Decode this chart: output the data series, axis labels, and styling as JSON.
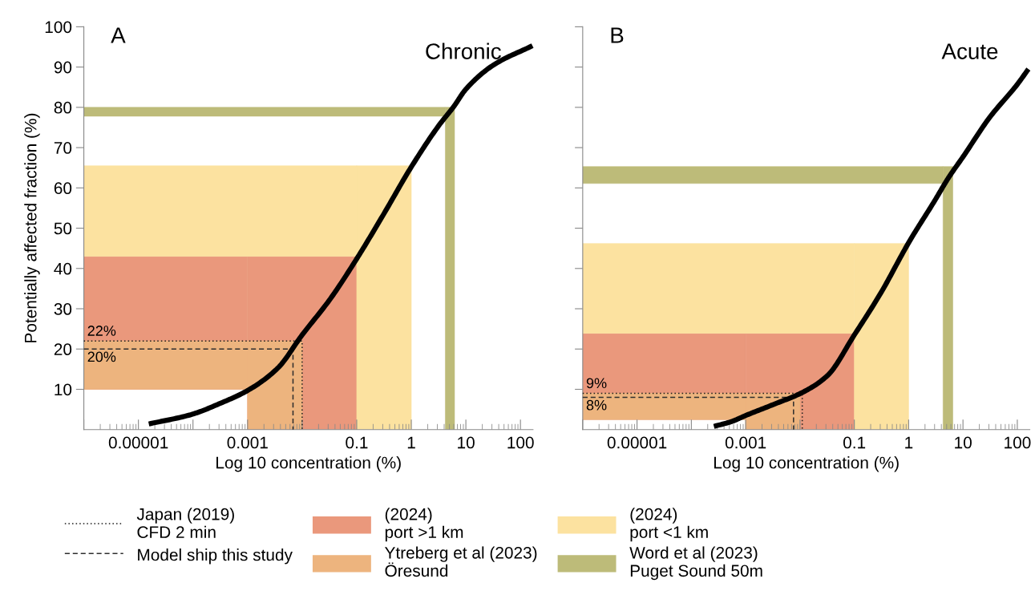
{
  "chart_data": [
    {
      "type": "line",
      "title": "A",
      "xlabel": "Log 10 concentration (%)",
      "ylabel": "Potentially affected fraction (%)",
      "log": "x",
      "xlim": [
        1e-06,
        170
      ],
      "ylim": [
        0,
        100
      ],
      "xticks": [
        {
          "value": 1e-06,
          "label": null
        },
        {
          "value": 1e-05,
          "label": "0.00001"
        },
        {
          "value": 0.0001,
          "label": null
        },
        {
          "value": 0.001,
          "label": "0.001"
        },
        {
          "value": 0.01,
          "label": null
        },
        {
          "value": 0.1,
          "label": "0.1"
        },
        {
          "value": 1,
          "label": "1"
        },
        {
          "value": 10,
          "label": "10"
        },
        {
          "value": 100,
          "label": "100"
        }
      ],
      "yticks": [
        10,
        20,
        30,
        40,
        50,
        60,
        70,
        80,
        90,
        100
      ],
      "legend": "bottom",
      "annotations": [
        "Chronic",
        {
          "text": "22%",
          "y": 22
        },
        {
          "text": "20%",
          "y": 20
        }
      ],
      "series": [
        {
          "name": "Japan (2019)\nCFD 2 min",
          "line_style": "dotted",
          "color": "#1c1c1c",
          "x": [
            1e-06,
            0.01,
            0.01
          ],
          "values": [
            22,
            22,
            0
          ]
        },
        {
          "name": "Model ship this study",
          "line_style": "dashed",
          "color": "#2e2e2e",
          "x": [
            1e-06,
            0.0068,
            0.0068
          ],
          "values": [
            20,
            20,
            0
          ]
        },
        {
          "type": "histogram",
          "name": "(2024)\nport >1 km",
          "color": "#ea987c",
          "bins": [
            1e-06,
            0.001,
            0.1
          ],
          "values": [
            33,
            43
          ],
          "base": [
            10,
            0
          ]
        },
        {
          "type": "histogram",
          "name": "Ytreberg et al (2023)\nÖresund",
          "color": "#edb47e",
          "bins": [
            1e-06,
            0.001,
            0.01
          ],
          "values": [
            12,
            22
          ],
          "base": [
            10,
            0
          ]
        },
        {
          "type": "histogram",
          "name": "(2024)\nport <1 km",
          "color": "#fce2a0",
          "bins": [
            1e-06,
            0.1,
            1
          ],
          "values": [
            22.5,
            65.5
          ],
          "base": [
            43,
            0
          ]
        },
        {
          "type": "histogram",
          "name": "Word et al (2023)\nPuget Sound 50m",
          "color": "#bdbb79",
          "bins": [
            1e-06,
            4.2,
            6.2
          ],
          "values": [
            2.2,
            80
          ],
          "base": [
            77.8,
            0
          ]
        },
        {
          "line_style": "solid",
          "color": "#000000",
          "x": [
            1.55e-05,
            9.1e-05,
            0.00034,
            0.001,
            0.0036,
            0.01,
            0.033,
            0.1,
            0.3,
            1,
            3.2,
            6,
            10,
            32,
            166
          ],
          "values": [
            1.4,
            3.7,
            6.7,
            9.7,
            15.3,
            23.5,
            32.5,
            42.4,
            53.1,
            65.2,
            75.5,
            80.2,
            84.5,
            90.5,
            95.3
          ]
        }
      ]
    },
    {
      "type": "line",
      "title": "B",
      "xlabel": "Log 10 concentration (%)",
      "log": "x",
      "xlim": [
        1e-06,
        170
      ],
      "ylim": [
        0,
        100
      ],
      "tick_labels": "x",
      "xticks": [
        {
          "value": 1e-06,
          "label": null
        },
        {
          "value": 1e-05,
          "label": "0.00001"
        },
        {
          "value": 0.0001,
          "label": null
        },
        {
          "value": 0.001,
          "label": "0.001"
        },
        {
          "value": 0.01,
          "label": null
        },
        {
          "value": 0.1,
          "label": "0.1"
        },
        {
          "value": 1,
          "label": "1"
        },
        {
          "value": 10,
          "label": "10"
        },
        {
          "value": 100,
          "label": "100"
        }
      ],
      "yticks": [
        10,
        20,
        30,
        40,
        50,
        60,
        70,
        80,
        90,
        100
      ],
      "annotations": [
        "Acute",
        {
          "text": "9%",
          "y": 9
        },
        {
          "text": "8%",
          "y": 8
        }
      ],
      "series": [
        {
          "type": "histogram",
          "color": "#ea987c",
          "bins": [
            1e-06,
            0.001,
            0.1
          ],
          "values": [
            21.4,
            23.9
          ],
          "base": [
            2.5,
            0
          ]
        },
        {
          "type": "histogram",
          "color": "#edb47e",
          "bins": [
            1e-06,
            0.001,
            0.01
          ],
          "values": [
            6.5,
            9
          ],
          "base": [
            2.5,
            0
          ]
        },
        {
          "type": "histogram",
          "color": "#fce2a0",
          "bins": [
            1e-06,
            0.1,
            1
          ],
          "values": [
            22.3,
            46.2
          ],
          "base": [
            23.9,
            0
          ]
        },
        {
          "type": "histogram",
          "color": "#bdbb79",
          "bins": [
            1e-06,
            4.3,
            6.5
          ],
          "values": [
            4.2,
            65.3
          ],
          "base": [
            61.1,
            0
          ]
        },
        {
          "line_style": "dotted",
          "color": "#1c1c1c",
          "x": [
            1e-06,
            0.011,
            0.011
          ],
          "values": [
            9,
            9,
            0
          ]
        },
        {
          "line_style": "dashed",
          "color": "#2e2e2e",
          "x": [
            1e-06,
            0.0076,
            0.0076
          ],
          "values": [
            8,
            8,
            0
          ]
        },
        {
          "line_style": "solid",
          "color": "#000000",
          "x": [
            0.00026,
            0.00055,
            0.001,
            0.0032,
            0.011,
            0.032,
            0.1,
            0.31,
            1,
            3.04,
            5.4,
            10,
            31,
            100,
            160
          ],
          "values": [
            0.8,
            2,
            3.5,
            6.2,
            9.2,
            13.4,
            23.5,
            34,
            46.4,
            56.9,
            62.5,
            67.7,
            77.5,
            85.7,
            89.5
          ]
        }
      ]
    }
  ]
}
